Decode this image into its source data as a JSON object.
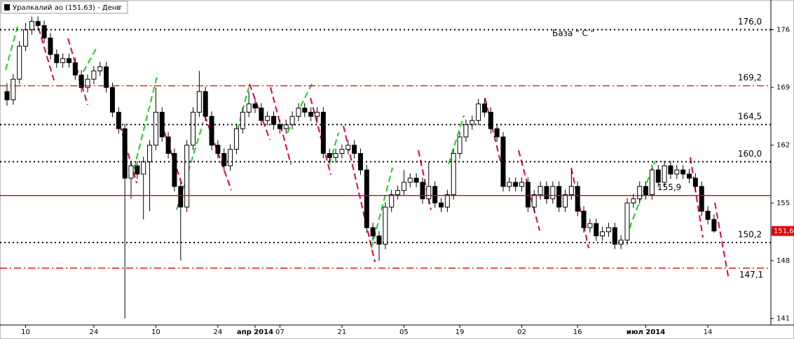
{
  "chart_data": {
    "type": "candlestick",
    "title": "Уралкалий ао (151.63) - День",
    "annotation": "База \" С \"",
    "up_color": "#ffffff",
    "down_color": "#000000",
    "ylim": [
      140.2,
      179.6
    ],
    "yticks": [
      141,
      148,
      155,
      162,
      169,
      176
    ],
    "last": {
      "value": 151.6,
      "label": "151,6",
      "color": "#e00000"
    },
    "levels": [
      {
        "value": 176.0,
        "label": "176,0",
        "style": "dotted",
        "color": "#000000"
      },
      {
        "value": 169.2,
        "label": "169,2",
        "style": "dashdot",
        "color": "#e00000"
      },
      {
        "value": 164.5,
        "label": "164,5",
        "style": "dotted",
        "color": "#000000"
      },
      {
        "value": 160.0,
        "label": "160,0",
        "style": "dotted",
        "color": "#000000"
      },
      {
        "value": 155.9,
        "label": "155,9",
        "style": "solid",
        "color": "#e00000"
      },
      {
        "value": 150.2,
        "label": "150,2",
        "style": "dotted",
        "color": "#000000"
      },
      {
        "value": 147.1,
        "label": "147,1",
        "style": "dashdot",
        "color": "#e00000"
      }
    ],
    "categories": [
      null,
      null,
      null,
      "10",
      null,
      null,
      null,
      null,
      null,
      null,
      null,
      null,
      null,
      null,
      "24",
      null,
      null,
      null,
      null,
      null,
      null,
      null,
      null,
      null,
      "10",
      null,
      null,
      null,
      null,
      null,
      null,
      null,
      null,
      null,
      "24",
      null,
      null,
      null,
      null,
      null,
      "апр 2014",
      null,
      null,
      null,
      "07",
      null,
      null,
      null,
      null,
      null,
      null,
      null,
      null,
      null,
      "21",
      null,
      null,
      null,
      null,
      null,
      null,
      null,
      null,
      null,
      "05",
      null,
      null,
      null,
      null,
      null,
      null,
      null,
      null,
      "19",
      null,
      null,
      null,
      null,
      null,
      null,
      null,
      null,
      null,
      "02",
      null,
      null,
      null,
      null,
      null,
      null,
      null,
      null,
      "16",
      null,
      null,
      null,
      null,
      null,
      null,
      null,
      null,
      null,
      null,
      "июл 2014",
      null,
      null,
      null,
      null,
      null,
      null,
      null,
      null,
      null,
      "14",
      null
    ],
    "ohlc": [
      [
        168.5,
        169.5,
        166.8,
        167.5
      ],
      [
        167.5,
        170.6,
        166.9,
        170
      ],
      [
        170,
        174.6,
        169.4,
        174
      ],
      [
        174,
        176.8,
        173.4,
        176
      ],
      [
        176,
        177.6,
        175.4,
        177
      ],
      [
        177,
        177.6,
        175.9,
        176.5
      ],
      [
        176.5,
        177.1,
        174.4,
        175
      ],
      [
        175,
        175.6,
        172.4,
        173
      ],
      [
        173,
        173.6,
        171.4,
        172
      ],
      [
        172,
        173.1,
        171.4,
        172.5
      ],
      [
        172.5,
        173.1,
        171.4,
        172
      ],
      [
        172,
        172.6,
        169.9,
        170.5
      ],
      [
        170.5,
        171.1,
        168.4,
        169
      ],
      [
        169,
        170.6,
        168.4,
        170
      ],
      [
        170,
        171.6,
        169.4,
        171
      ],
      [
        171,
        172.1,
        170.4,
        171.5
      ],
      [
        171.5,
        172.1,
        168.4,
        169
      ],
      [
        169,
        169.6,
        165.4,
        166
      ],
      [
        166,
        166.6,
        163.4,
        164
      ],
      [
        164,
        164.6,
        141,
        158
      ],
      [
        158,
        160.1,
        155.5,
        159.5
      ],
      [
        159.5,
        160.1,
        157.9,
        158.5
      ],
      [
        158.5,
        160.6,
        153,
        160
      ],
      [
        160,
        162.6,
        154,
        162
      ],
      [
        162,
        169,
        161.4,
        166
      ],
      [
        166,
        166.6,
        162.4,
        163
      ],
      [
        163,
        163.6,
        160.4,
        161
      ],
      [
        161,
        161.6,
        156.4,
        157
      ],
      [
        157,
        157.6,
        148,
        154.5
      ],
      [
        154.5,
        162.6,
        153.9,
        162
      ],
      [
        162,
        166.6,
        161.4,
        166
      ],
      [
        166,
        171,
        165.4,
        168.5
      ],
      [
        168.5,
        169.1,
        164.9,
        165.5
      ],
      [
        165.5,
        166.1,
        161.4,
        162
      ],
      [
        162,
        162.6,
        160.4,
        161
      ],
      [
        161,
        161.6,
        158.9,
        159.5
      ],
      [
        159.5,
        162.1,
        158.9,
        161.5
      ],
      [
        161.5,
        164.6,
        160.9,
        164
      ],
      [
        164,
        166.6,
        163.4,
        166
      ],
      [
        166,
        168.5,
        165.4,
        167
      ],
      [
        167,
        167.6,
        165.9,
        166.5
      ],
      [
        166.5,
        167.1,
        164.4,
        165
      ],
      [
        165,
        166.1,
        164.4,
        165.5
      ],
      [
        165.5,
        166.1,
        163.9,
        164.5
      ],
      [
        164.5,
        165.1,
        163.4,
        164
      ],
      [
        164,
        165.1,
        163.4,
        164.5
      ],
      [
        164.5,
        166.1,
        163.9,
        165.5
      ],
      [
        165.5,
        167.1,
        164.9,
        166.5
      ],
      [
        166.5,
        167.1,
        165.4,
        166
      ],
      [
        166,
        166.6,
        164.9,
        165.5
      ],
      [
        165.5,
        166.6,
        164.9,
        166
      ],
      [
        166,
        166.6,
        160.4,
        161
      ],
      [
        161,
        161.6,
        159.9,
        160.5
      ],
      [
        160.5,
        161.6,
        159.9,
        161
      ],
      [
        161,
        162.1,
        160.4,
        161.5
      ],
      [
        161.5,
        162.6,
        160.9,
        162
      ],
      [
        162,
        162.6,
        160.4,
        161
      ],
      [
        161,
        161.6,
        158.4,
        159
      ],
      [
        159,
        159.6,
        151.4,
        152
      ],
      [
        152,
        152.6,
        150.4,
        151
      ],
      [
        151,
        151.6,
        148,
        150
      ],
      [
        150,
        155.1,
        149.4,
        154.5
      ],
      [
        154.5,
        156.6,
        153.9,
        156
      ],
      [
        156,
        157.1,
        155.4,
        156.5
      ],
      [
        156.5,
        159,
        155.9,
        157.5
      ],
      [
        157.5,
        158.6,
        156.9,
        158
      ],
      [
        158,
        158.6,
        156.9,
        157.5
      ],
      [
        157.5,
        158.1,
        154.9,
        155.5
      ],
      [
        155.5,
        160,
        154.9,
        157
      ],
      [
        157,
        157.6,
        154.4,
        155
      ],
      [
        155,
        155.6,
        153.9,
        154.5
      ],
      [
        154.5,
        156.6,
        153.9,
        156
      ],
      [
        156,
        161.6,
        155.4,
        161
      ],
      [
        161,
        163.6,
        160.4,
        163
      ],
      [
        163,
        165.1,
        162.4,
        164.5
      ],
      [
        164.5,
        165.6,
        163.9,
        165
      ],
      [
        165,
        167.6,
        164.4,
        167
      ],
      [
        167,
        167.6,
        165.4,
        166
      ],
      [
        166,
        166.6,
        163.4,
        164
      ],
      [
        164,
        164.6,
        162.4,
        163
      ],
      [
        163,
        163.6,
        156.4,
        157
      ],
      [
        157,
        158.1,
        156.4,
        157.5
      ],
      [
        157.5,
        158.1,
        156.4,
        157
      ],
      [
        157,
        158.1,
        156.4,
        157.5
      ],
      [
        157.5,
        158.1,
        153.9,
        154.5
      ],
      [
        154.5,
        156.6,
        153.9,
        156
      ],
      [
        156,
        157.6,
        155.4,
        157
      ],
      [
        157,
        157.6,
        154.9,
        155.5
      ],
      [
        155.5,
        157.6,
        154.9,
        157
      ],
      [
        157,
        157.6,
        153.9,
        154.5
      ],
      [
        154.5,
        156.6,
        153.9,
        156
      ],
      [
        156,
        159,
        155.4,
        157
      ],
      [
        157,
        157.6,
        153.4,
        154
      ],
      [
        154,
        154.6,
        151.4,
        152
      ],
      [
        152,
        153.1,
        151.4,
        152.5
      ],
      [
        152.5,
        153.1,
        150.4,
        151
      ],
      [
        151,
        152.1,
        150.4,
        151.5
      ],
      [
        151.5,
        152.6,
        150.9,
        152
      ],
      [
        152,
        152.6,
        149.4,
        150
      ],
      [
        150,
        151.1,
        149.4,
        150.5
      ],
      [
        150.5,
        155.6,
        149.9,
        155
      ],
      [
        155,
        156.1,
        154.4,
        155.5
      ],
      [
        155.5,
        157.6,
        154.9,
        157
      ],
      [
        157,
        157.6,
        155.4,
        156
      ],
      [
        156,
        159.6,
        155.4,
        159
      ],
      [
        159,
        159.6,
        156.9,
        157.5
      ],
      [
        157.5,
        160.1,
        156.9,
        159.5
      ],
      [
        159.5,
        160.1,
        157.9,
        158.5
      ],
      [
        158.5,
        159.6,
        157.9,
        159
      ],
      [
        159,
        159.6,
        157.9,
        158.5
      ],
      [
        158.5,
        159.1,
        157.4,
        158
      ],
      [
        158,
        158.6,
        156.4,
        157
      ],
      [
        157,
        157.6,
        153.4,
        154
      ],
      [
        154,
        154.6,
        152.4,
        153
      ],
      [
        153,
        153.6,
        151.4,
        151.6
      ]
    ]
  }
}
